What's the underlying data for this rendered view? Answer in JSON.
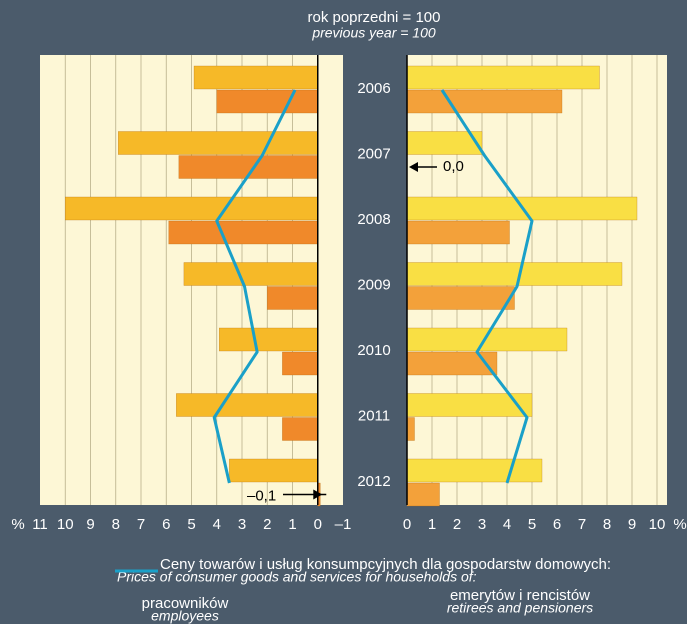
{
  "header": {
    "title": "rok poprzedni = 100",
    "subtitle": "previous year = 100"
  },
  "legend": {
    "line_label": "Ceny towarów i usług konsumpcyjnych dla gospodarstw domowych:",
    "line_label_en": "Prices of consumer goods and services for households of:",
    "line_color": "#1aa0c8"
  },
  "chart_data": [
    {
      "type": "bar",
      "orientation": "horizontal",
      "caption": "pracowników",
      "caption_en": "employees",
      "categories": [
        "2006",
        "2007",
        "2008",
        "2009",
        "2010",
        "2011",
        "2012"
      ],
      "xlabel": "%",
      "xlim": [
        11,
        -1
      ],
      "xticks": [
        11,
        10,
        9,
        8,
        7,
        6,
        5,
        4,
        3,
        2,
        1,
        0,
        {
          "value": -1,
          "label": "–1"
        }
      ],
      "grid": true,
      "series": [
        {
          "type": "bar",
          "color": "#f6b928",
          "values": [
            4.9,
            7.9,
            10.0,
            5.3,
            3.9,
            5.6,
            3.5
          ]
        },
        {
          "type": "bar",
          "color": "#f0892a",
          "values": [
            4.0,
            5.5,
            5.9,
            2.0,
            1.4,
            1.4,
            -0.1
          ],
          "value_labels": [
            null,
            null,
            null,
            null,
            null,
            null,
            "–0,1"
          ]
        },
        {
          "type": "line",
          "color": "#1aa0c8",
          "values": [
            0.9,
            2.2,
            4.0,
            2.9,
            2.4,
            4.1,
            3.5
          ]
        }
      ]
    },
    {
      "type": "bar",
      "orientation": "horizontal",
      "caption": "emerytów i rencistów",
      "caption_en": "retirees and pensioners",
      "xlabel": "%",
      "xlim": [
        0,
        10.4
      ],
      "xticks": [
        0,
        1,
        2,
        3,
        4,
        5,
        6,
        7,
        8,
        9,
        10
      ],
      "grid": true,
      "series": [
        {
          "type": "bar",
          "color": "#f9df44",
          "values": [
            7.7,
            3.0,
            9.2,
            8.6,
            6.4,
            5.0,
            5.4
          ]
        },
        {
          "type": "bar",
          "color": "#f3a13a",
          "values": [
            6.2,
            0.0,
            4.1,
            4.3,
            3.6,
            0.3,
            1.3
          ],
          "value_labels": [
            null,
            "0,0",
            null,
            null,
            null,
            null,
            null
          ]
        },
        {
          "type": "line",
          "color": "#1aa0c8",
          "values": [
            1.4,
            3.1,
            5.0,
            4.4,
            2.8,
            4.8,
            4.0
          ]
        }
      ]
    }
  ]
}
